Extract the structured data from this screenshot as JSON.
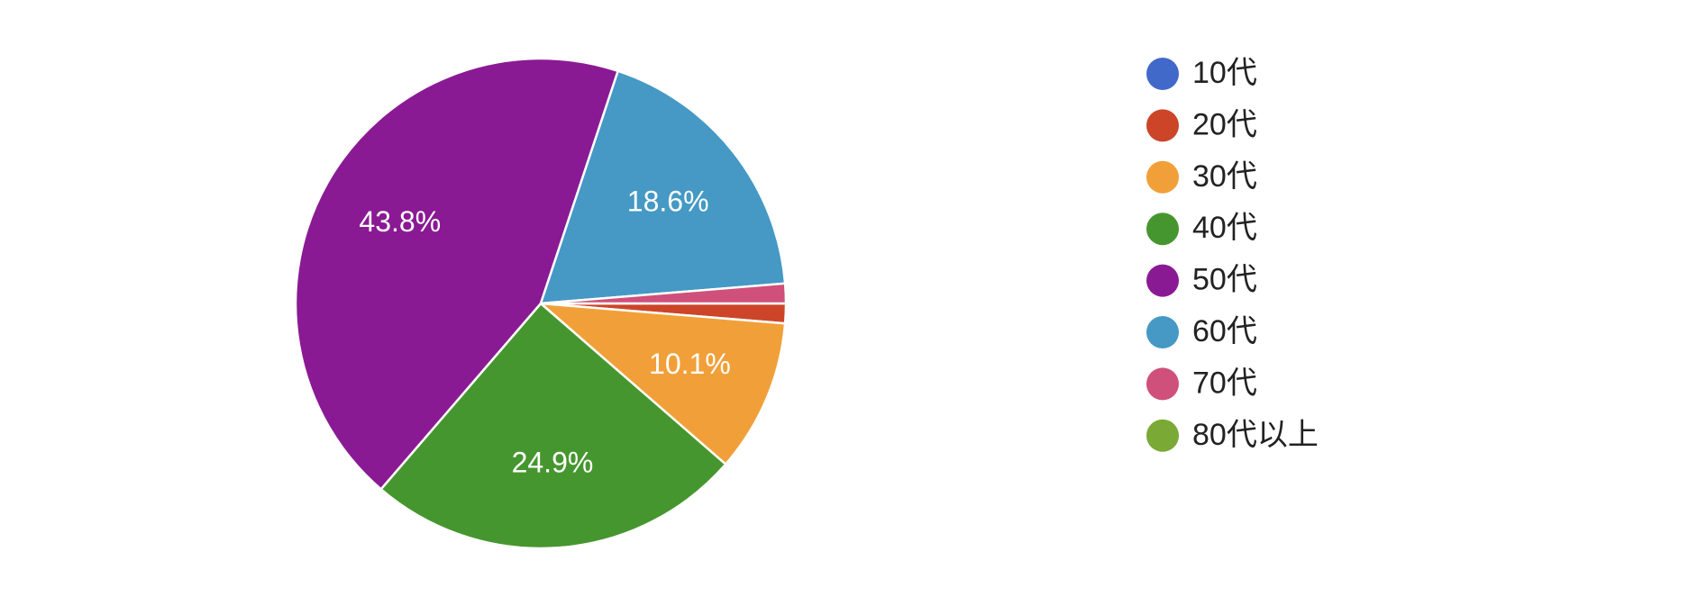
{
  "chart_data": {
    "type": "pie",
    "categories": [
      "10代",
      "20代",
      "30代",
      "40代",
      "50代",
      "60代",
      "70代",
      "80代以上"
    ],
    "values": [
      0,
      1.3,
      10.1,
      24.9,
      43.8,
      18.6,
      1.3,
      0
    ],
    "value_labels": [
      null,
      null,
      "10.1%",
      "24.9%",
      "43.8%",
      "18.6%",
      null,
      null
    ],
    "colors": [
      "#4169c9",
      "#cc4529",
      "#f1a039",
      "#46962f",
      "#8a1a93",
      "#4599c4",
      "#cf507a",
      "#7aa935"
    ],
    "legend": "right"
  }
}
